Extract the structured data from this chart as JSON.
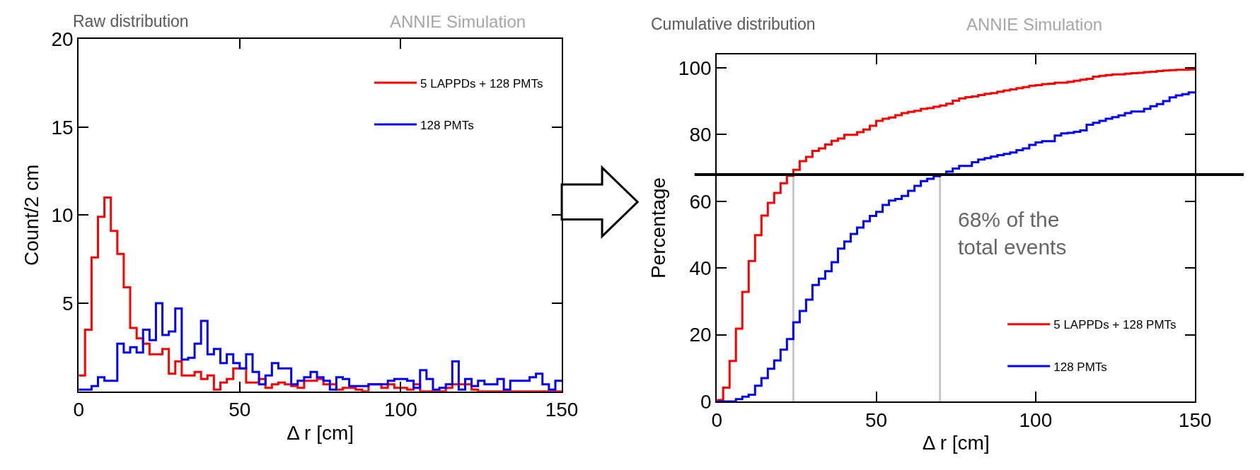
{
  "chart_data": [
    {
      "type": "histogram",
      "title": "Raw distribution",
      "xlabel": "Δ r [cm]",
      "ylabel": "Count/2 cm",
      "annotations": [
        "ANNIE Simulation"
      ],
      "bins": [
        0,
        2,
        4,
        6,
        8,
        10,
        12,
        14,
        16,
        18,
        20,
        22,
        24,
        26,
        28,
        30,
        32,
        34,
        36,
        38,
        40,
        42,
        44,
        46,
        48,
        50,
        52,
        54,
        56,
        58,
        60,
        62,
        64,
        66,
        68,
        70,
        72,
        74,
        76,
        78,
        80,
        82,
        84,
        86,
        88,
        90,
        92,
        94,
        96,
        98,
        100,
        102,
        104,
        106,
        108,
        110,
        112,
        114,
        116,
        118,
        120,
        122,
        124,
        126,
        128,
        130,
        132,
        134,
        136,
        138,
        140,
        142,
        144,
        146,
        148,
        150
      ],
      "series": [
        {
          "name": "5 LAPPDs + 128 PMTs",
          "color": "#ff0000",
          "values": [
            0.9,
            3.5,
            7.6,
            9.9,
            11,
            9.1,
            7.8,
            5.9,
            3.6,
            3.0,
            2.7,
            2.1,
            2.1,
            2.4,
            1.0,
            1.7,
            0.9,
            0.9,
            1.1,
            0.7,
            0.9,
            0.1,
            0.5,
            0.7,
            1.3,
            1.3,
            0.5,
            0.5,
            0.7,
            0.2,
            0.4,
            0.5,
            0.4,
            0.3,
            0.2,
            0.6,
            0.6,
            0.7,
            0.4,
            0.4,
            0.1,
            0.2,
            0.2,
            0.1,
            0,
            0.4,
            0.4,
            0.2,
            0.4,
            0.2,
            0.2,
            0.1,
            0.4,
            0,
            0,
            0,
            0,
            0.2,
            0.4,
            0.4,
            0.4,
            0.1,
            0,
            0,
            0,
            0,
            0,
            0,
            0,
            0,
            0,
            0,
            0,
            0,
            0
          ]
        },
        {
          "name": "128 PMTs",
          "color": "#0000ff",
          "values": [
            0.1,
            0.1,
            0.3,
            0.8,
            0.6,
            0.6,
            2.7,
            2.2,
            2.5,
            2.2,
            3.5,
            2.9,
            5.0,
            3.2,
            3.4,
            4.7,
            1.8,
            1.9,
            2.7,
            4.0,
            2.1,
            2.4,
            1.6,
            2.1,
            1.6,
            1.3,
            2.1,
            1.1,
            0.4,
            0.9,
            1.6,
            1.3,
            1.3,
            0.4,
            0.6,
            0.8,
            1.1,
            0.8,
            0.6,
            0.1,
            0.8,
            0.7,
            0.3,
            0.3,
            0.3,
            0.4,
            0.4,
            0.4,
            0.6,
            0.7,
            0.7,
            0.6,
            0.2,
            1.2,
            0.7,
            0.1,
            0.2,
            0.4,
            1.7,
            0.1,
            0.7,
            0.3,
            0.6,
            0.4,
            0.4,
            0.7,
            0.1,
            0.6,
            0.6,
            0.6,
            0.8,
            1.0,
            0.4,
            0.1,
            0.6
          ]
        }
      ],
      "xlim": [
        0,
        150
      ],
      "xticks": [
        0,
        50,
        100,
        150
      ],
      "ylim": [
        0,
        20
      ],
      "yticks": [
        5,
        10,
        15,
        20
      ],
      "legend": "top right"
    },
    {
      "type": "histogram",
      "title": "Cumulative distribution",
      "xlabel": "Δ r [cm]",
      "ylabel": "Percentage",
      "annotations": [
        "ANNIE Simulation",
        "68% of the\ntotal events"
      ],
      "bins": [
        0,
        2,
        4,
        6,
        8,
        10,
        12,
        14,
        16,
        18,
        20,
        22,
        24,
        26,
        28,
        30,
        32,
        34,
        36,
        38,
        40,
        42,
        44,
        46,
        48,
        50,
        52,
        54,
        56,
        58,
        60,
        62,
        64,
        66,
        68,
        70,
        72,
        74,
        76,
        78,
        80,
        82,
        84,
        86,
        88,
        90,
        92,
        94,
        96,
        98,
        100,
        102,
        104,
        106,
        108,
        110,
        112,
        114,
        116,
        118,
        120,
        122,
        124,
        126,
        128,
        130,
        132,
        134,
        136,
        138,
        140,
        142,
        144,
        146,
        148,
        150
      ],
      "series": [
        {
          "name": "5 LAPPDs + 128 PMTs",
          "color": "#ff0000",
          "values": [
            0.4,
            4.1,
            12.1,
            21.8,
            32.8,
            42.1,
            49.8,
            55.7,
            59.5,
            62.5,
            65.4,
            67.6,
            69.4,
            72.0,
            73.3,
            75.1,
            75.8,
            77.0,
            78.1,
            78.8,
            79.9,
            79.9,
            80.7,
            81.5,
            82.6,
            84.1,
            84.7,
            85.1,
            85.8,
            86.4,
            86.8,
            87.1,
            87.7,
            87.9,
            88.3,
            88.7,
            89.2,
            90.1,
            90.8,
            91.2,
            91.4,
            91.8,
            92.2,
            92.4,
            92.8,
            93.2,
            93.5,
            93.9,
            94.2,
            94.6,
            94.8,
            95.1,
            95.2,
            95.5,
            95.5,
            95.8,
            96.1,
            96.4,
            96.7,
            97.3,
            97.6,
            97.8,
            98.0,
            98.0,
            98.2,
            98.4,
            98.5,
            98.7,
            98.8,
            99.0,
            99.2,
            99.3,
            99.4,
            99.4,
            99.5
          ]
        },
        {
          "name": "128 PMTs",
          "color": "#0000ff",
          "values": [
            0,
            0,
            0,
            0.7,
            1.4,
            2.0,
            4.7,
            7.0,
            9.8,
            12.3,
            15.5,
            18.7,
            23.7,
            27.1,
            30.5,
            34.9,
            36.8,
            39.0,
            41.7,
            45.8,
            47.9,
            50.2,
            52.1,
            54.0,
            55.6,
            56.8,
            58.9,
            60.2,
            60.7,
            61.6,
            63.1,
            64.6,
            66.0,
            66.7,
            67.5,
            68.0,
            68.9,
            69.8,
            70.6,
            70.6,
            71.7,
            72.5,
            72.9,
            73.4,
            73.8,
            74.2,
            74.6,
            75.3,
            75.8,
            76.9,
            77.6,
            78.0,
            78.0,
            79.7,
            80.3,
            80.5,
            80.8,
            81.2,
            82.9,
            83.5,
            84.1,
            84.7,
            85.2,
            85.7,
            86.4,
            86.9,
            86.9,
            87.7,
            88.5,
            89.1,
            90.0,
            91.1,
            91.7,
            92.1,
            92.6
          ]
        }
      ],
      "ref_lines": [
        {
          "axis": "y",
          "value": 68,
          "color": "#000000"
        },
        {
          "axis": "x",
          "value": 24,
          "color": "#c8c8c8"
        },
        {
          "axis": "x",
          "value": 70,
          "color": "#c8c8c8"
        }
      ],
      "xlim": [
        0,
        150
      ],
      "xticks": [
        0,
        50,
        100,
        150
      ],
      "ylim": [
        0,
        104
      ],
      "yticks": [
        0,
        20,
        40,
        60,
        80,
        100
      ],
      "legend": "bottom right"
    }
  ]
}
